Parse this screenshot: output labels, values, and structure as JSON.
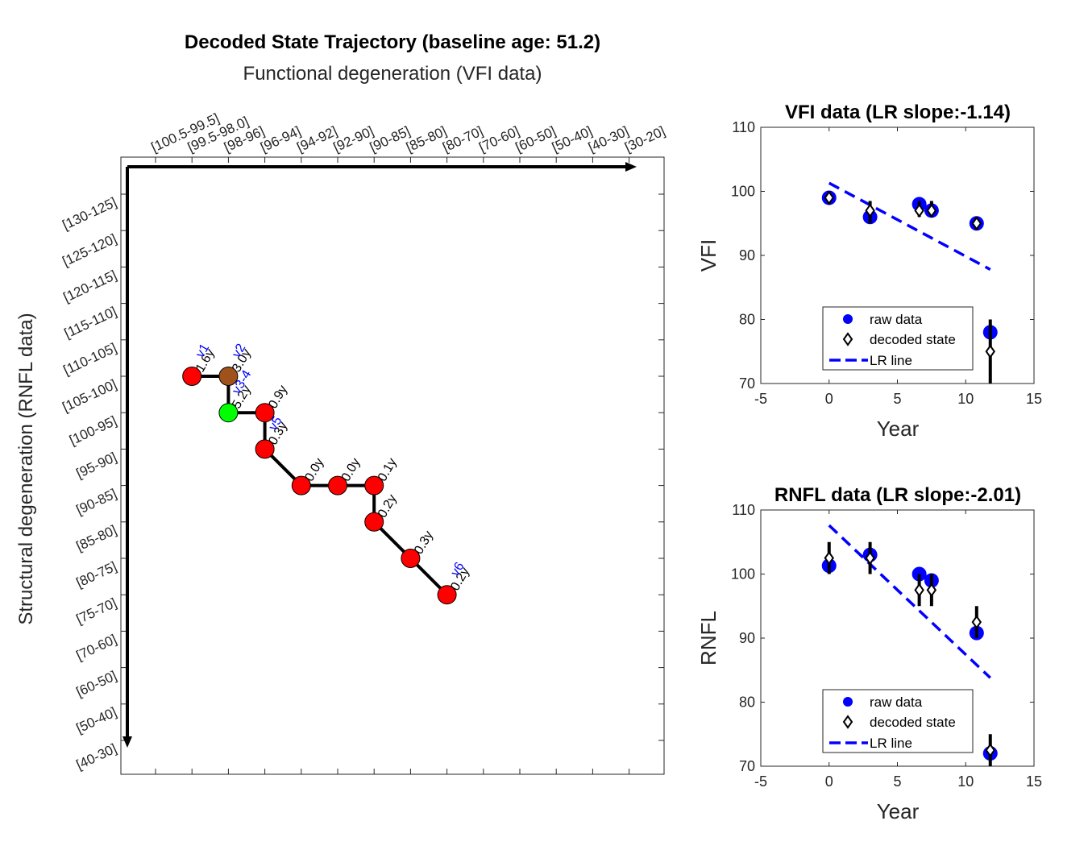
{
  "chart_data": [
    {
      "type": "line",
      "title": "Decoded State Trajectory (baseline age: 51.2)",
      "subtitle": "Functional degeneration (VFI data)",
      "xlabel": "",
      "ylabel": "Structural degeneration (RNFL data)",
      "x_categories": [
        "[100.5-99.5]",
        "[99.5-98.0]",
        "[98-96]",
        "[96-94]",
        "[94-92]",
        "[92-90]",
        "[90-85]",
        "[85-80]",
        "[80-70]",
        "[70-60]",
        "[60-50]",
        "[50-40]",
        "[40-30]",
        "[30-20]"
      ],
      "y_categories": [
        "[130-125]",
        "[125-120]",
        "[120-115]",
        "[115-110]",
        "[110-105]",
        "[105-100]",
        "[100-95]",
        "[95-90]",
        "[90-85]",
        "[85-80]",
        "[80-75]",
        "[75-70]",
        "[70-60]",
        "[60-50]",
        "[50-40]",
        "[40-30]"
      ],
      "states": [
        {
          "x": "[99.5-98.0]",
          "y": "[105-100]",
          "duration": "1.6y",
          "visit": "v1",
          "color": "#ff0000"
        },
        {
          "x": "[98-96]",
          "y": "[105-100]",
          "duration": "3.0y",
          "visit": "v2",
          "color": "#a0521c"
        },
        {
          "x": "[98-96]",
          "y": "[100-95]",
          "duration": "5.2y",
          "visit": "v3-4",
          "color": "#00ff00"
        },
        {
          "x": "[96-94]",
          "y": "[100-95]",
          "duration": "0.9y",
          "visit": "",
          "color": "#ff0000"
        },
        {
          "x": "[96-94]",
          "y": "[95-90]",
          "duration": "0.3y",
          "visit": "v5",
          "color": "#ff0000"
        },
        {
          "x": "[94-92]",
          "y": "[90-85]",
          "duration": "0.0y",
          "visit": "",
          "color": "#ff0000"
        },
        {
          "x": "[92-90]",
          "y": "[90-85]",
          "duration": "0.0y",
          "visit": "",
          "color": "#ff0000"
        },
        {
          "x": "[90-85]",
          "y": "[90-85]",
          "duration": "0.1y",
          "visit": "",
          "color": "#ff0000"
        },
        {
          "x": "[90-85]",
          "y": "[85-80]",
          "duration": "0.2y",
          "visit": "",
          "color": "#ff0000"
        },
        {
          "x": "[85-80]",
          "y": "[80-75]",
          "duration": "0.3y",
          "visit": "",
          "color": "#ff0000"
        },
        {
          "x": "[80-70]",
          "y": "[75-70]",
          "duration": "0.2y",
          "visit": "v6",
          "color": "#ff0000"
        }
      ]
    },
    {
      "type": "scatter",
      "title": "VFI data (LR slope:-1.14)",
      "xlabel": "Year",
      "ylabel": "VFI",
      "xlim": [
        -5,
        15
      ],
      "ylim": [
        70,
        110
      ],
      "xticks": [
        -5,
        0,
        5,
        10,
        15
      ],
      "yticks": [
        70,
        80,
        90,
        100,
        110
      ],
      "legend": [
        "raw data",
        "decoded state",
        "LR line"
      ],
      "legend_position": "bottom-center",
      "raw_data": {
        "x": [
          0,
          3.0,
          6.6,
          7.5,
          10.8,
          11.8
        ],
        "y": [
          99,
          96,
          98,
          97,
          95,
          78
        ]
      },
      "decoded_state": {
        "x": [
          0,
          3.0,
          6.6,
          7.5,
          10.8,
          11.8
        ],
        "y": [
          99,
          97,
          97,
          97,
          95,
          75
        ],
        "err_low": [
          98,
          95,
          96,
          96,
          94,
          70
        ],
        "err_high": [
          100,
          98.5,
          98.5,
          98.5,
          96,
          80
        ]
      },
      "lr_line": {
        "x": [
          0,
          11.8
        ],
        "y": [
          101.3,
          87.8
        ]
      },
      "colors": {
        "raw": "#0000ff",
        "decoded": "#000000",
        "lr": "#0000ff"
      }
    },
    {
      "type": "scatter",
      "title": "RNFL data (LR slope:-2.01)",
      "xlabel": "Year",
      "ylabel": "RNFL",
      "xlim": [
        -5,
        15
      ],
      "ylim": [
        70,
        110
      ],
      "xticks": [
        -5,
        0,
        5,
        10,
        15
      ],
      "yticks": [
        70,
        80,
        90,
        100,
        110
      ],
      "legend": [
        "raw data",
        "decoded state",
        "LR line"
      ],
      "legend_position": "bottom-center",
      "raw_data": {
        "x": [
          0,
          3.0,
          6.6,
          7.5,
          10.8,
          11.8
        ],
        "y": [
          101.3,
          103,
          100,
          99,
          90.8,
          72
        ]
      },
      "decoded_state": {
        "x": [
          0,
          3.0,
          6.6,
          7.5,
          10.8,
          11.8
        ],
        "y": [
          102.5,
          102.5,
          97.5,
          97.5,
          92.5,
          72.5
        ],
        "err_low": [
          100,
          100,
          95,
          95,
          90,
          70
        ],
        "err_high": [
          105,
          105,
          100,
          100,
          95,
          75
        ]
      },
      "lr_line": {
        "x": [
          0,
          11.8
        ],
        "y": [
          107.6,
          83.8
        ]
      },
      "colors": {
        "raw": "#0000ff",
        "decoded": "#000000",
        "lr": "#0000ff"
      }
    }
  ]
}
